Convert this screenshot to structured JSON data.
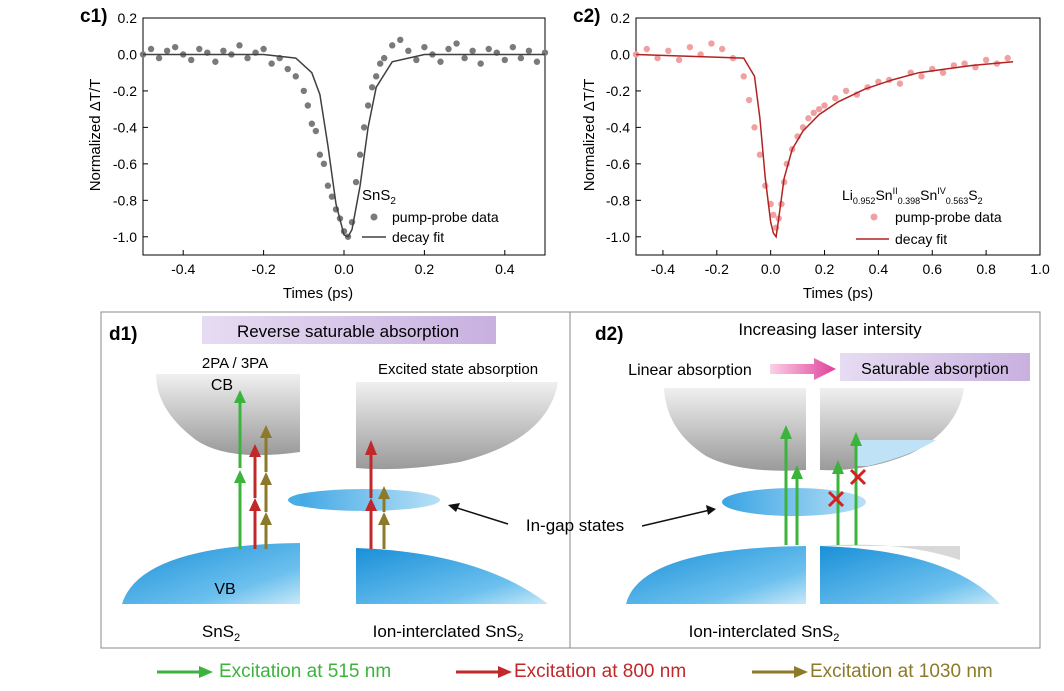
{
  "chart_data": [
    {
      "panel": "c1)",
      "type": "scatter",
      "title": "",
      "xlabel": "Times (ps)",
      "ylabel": "Normalized ΔT/T",
      "xlim": [
        -0.5,
        0.5
      ],
      "ylim": [
        -1.1,
        0.2
      ],
      "xticks": [
        "-0.4",
        "-0.2",
        "0.0",
        "0.2",
        "0.4"
      ],
      "yticks": [
        "0.2",
        "0.0",
        "-0.2",
        "-0.4",
        "-0.6",
        "-0.8",
        "-1.0"
      ],
      "annotation": "SnS2",
      "legend": [
        "pump-probe data",
        "decay fit"
      ],
      "colors": {
        "data": "#7a7a7a",
        "fit": "#404040"
      },
      "series": [
        {
          "name": "pump-probe data",
          "x": [
            -0.5,
            -0.48,
            -0.46,
            -0.44,
            -0.42,
            -0.4,
            -0.38,
            -0.36,
            -0.34,
            -0.32,
            -0.3,
            -0.28,
            -0.26,
            -0.24,
            -0.22,
            -0.2,
            -0.18,
            -0.16,
            -0.14,
            -0.12,
            -0.1,
            -0.09,
            -0.08,
            -0.07,
            -0.06,
            -0.05,
            -0.04,
            -0.03,
            -0.02,
            -0.01,
            0.0,
            0.01,
            0.02,
            0.03,
            0.04,
            0.05,
            0.06,
            0.07,
            0.08,
            0.09,
            0.1,
            0.12,
            0.14,
            0.16,
            0.18,
            0.2,
            0.22,
            0.24,
            0.26,
            0.28,
            0.3,
            0.32,
            0.34,
            0.36,
            0.38,
            0.4,
            0.42,
            0.44,
            0.46,
            0.48,
            0.5
          ],
          "y": [
            0.0,
            0.03,
            -0.02,
            0.02,
            0.04,
            0.0,
            -0.03,
            0.03,
            0.01,
            -0.04,
            0.02,
            0.0,
            0.05,
            -0.02,
            0.01,
            0.03,
            -0.05,
            -0.02,
            -0.08,
            -0.12,
            -0.2,
            -0.28,
            -0.38,
            -0.42,
            -0.55,
            -0.6,
            -0.72,
            -0.78,
            -0.85,
            -0.9,
            -0.97,
            -1.0,
            -0.92,
            -0.7,
            -0.55,
            -0.4,
            -0.28,
            -0.18,
            -0.12,
            -0.05,
            -0.02,
            0.05,
            0.08,
            0.02,
            -0.03,
            0.04,
            0.0,
            -0.04,
            0.03,
            0.06,
            -0.02,
            0.02,
            -0.05,
            0.03,
            0.01,
            -0.03,
            0.04,
            -0.02,
            0.02,
            -0.04,
            0.01
          ]
        },
        {
          "name": "decay fit",
          "x": [
            -0.5,
            -0.2,
            -0.12,
            -0.08,
            -0.06,
            -0.04,
            -0.02,
            0.0,
            0.01,
            0.02,
            0.04,
            0.06,
            0.08,
            0.12,
            0.2,
            0.5
          ],
          "y": [
            0.0,
            0.0,
            -0.02,
            -0.1,
            -0.22,
            -0.5,
            -0.82,
            -0.99,
            -1.0,
            -0.96,
            -0.72,
            -0.4,
            -0.18,
            -0.04,
            0.0,
            0.0
          ]
        }
      ]
    },
    {
      "panel": "c2)",
      "type": "scatter",
      "title": "",
      "xlabel": "Times (ps)",
      "ylabel": "Normalized ΔT/T",
      "xlim": [
        -0.5,
        1.0
      ],
      "ylim": [
        -1.1,
        0.2
      ],
      "xticks": [
        "-0.4",
        "-0.2",
        "0.0",
        "0.2",
        "0.4",
        "0.6",
        "0.8",
        "1.0"
      ],
      "yticks": [
        "0.2",
        "0.0",
        "-0.2",
        "-0.4",
        "-0.6",
        "-0.8",
        "-1.0"
      ],
      "annotation": "Li0.952SnII0.398SnIV0.563S2",
      "legend": [
        "pump-probe data",
        "decay fit"
      ],
      "colors": {
        "data": "#f0a0a0",
        "fit": "#b22222"
      },
      "series": [
        {
          "name": "pump-probe data",
          "x": [
            -0.5,
            -0.46,
            -0.42,
            -0.38,
            -0.34,
            -0.3,
            -0.26,
            -0.22,
            -0.18,
            -0.14,
            -0.1,
            -0.08,
            -0.06,
            -0.04,
            -0.02,
            0.0,
            0.01,
            0.02,
            0.03,
            0.04,
            0.05,
            0.06,
            0.08,
            0.1,
            0.12,
            0.14,
            0.16,
            0.18,
            0.2,
            0.24,
            0.28,
            0.32,
            0.36,
            0.4,
            0.44,
            0.48,
            0.52,
            0.56,
            0.6,
            0.64,
            0.68,
            0.72,
            0.76,
            0.8,
            0.84,
            0.88
          ],
          "y": [
            0.0,
            0.03,
            -0.02,
            0.02,
            -0.03,
            0.04,
            0.0,
            0.06,
            0.03,
            -0.02,
            -0.12,
            -0.25,
            -0.4,
            -0.55,
            -0.72,
            -0.82,
            -0.88,
            -0.95,
            -0.9,
            -0.82,
            -0.7,
            -0.6,
            -0.52,
            -0.45,
            -0.4,
            -0.35,
            -0.32,
            -0.3,
            -0.28,
            -0.24,
            -0.2,
            -0.22,
            -0.18,
            -0.15,
            -0.14,
            -0.16,
            -0.1,
            -0.12,
            -0.08,
            -0.1,
            -0.06,
            -0.05,
            -0.07,
            -0.03,
            -0.05,
            -0.02
          ]
        },
        {
          "name": "decay fit",
          "x": [
            -0.5,
            -0.1,
            -0.06,
            -0.04,
            -0.02,
            0.0,
            0.01,
            0.02,
            0.03,
            0.05,
            0.08,
            0.12,
            0.18,
            0.25,
            0.35,
            0.45,
            0.55,
            0.65,
            0.75,
            0.9
          ],
          "y": [
            0.0,
            -0.02,
            -0.12,
            -0.35,
            -0.68,
            -0.92,
            -0.98,
            -1.0,
            -0.9,
            -0.68,
            -0.52,
            -0.42,
            -0.33,
            -0.26,
            -0.19,
            -0.14,
            -0.1,
            -0.08,
            -0.06,
            -0.04
          ]
        }
      ]
    }
  ],
  "d1": {
    "label": "d1)",
    "banner": "Reverse saturable absorption",
    "tpa": "2PA / 3PA",
    "cb": "CB",
    "vb": "VB",
    "esa": "Excited state absorption",
    "left_caption": "SnS2",
    "right_caption": "Ion-interclated SnS2"
  },
  "d2": {
    "label": "d2)",
    "top": "Increasing laser intersity",
    "linear": "Linear absorption",
    "saturable": "Saturable absorption",
    "caption": "Ion-interclated SnS2"
  },
  "ingap": "In-gap states",
  "legend": {
    "e515": "Excitation at 515 nm",
    "e800": "Excitation at 800 nm",
    "e1030": "Excitation at 1030 nm",
    "c515": "#3cb43c",
    "c800": "#c0282a",
    "c1030": "#8c7a28"
  }
}
